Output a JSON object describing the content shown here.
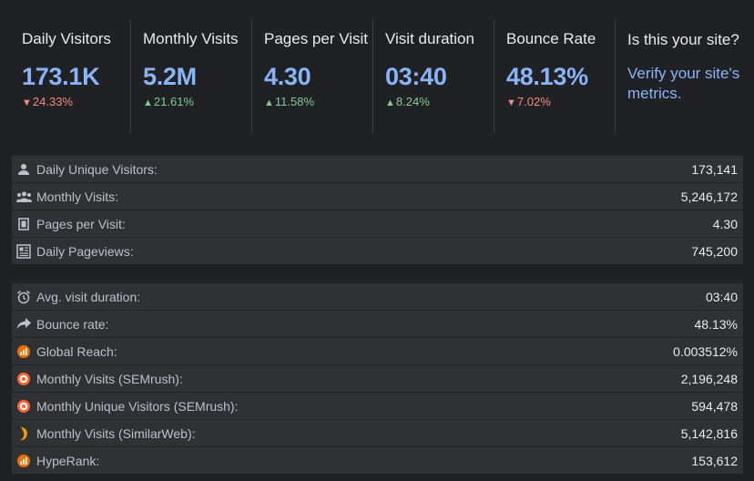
{
  "stats": [
    {
      "label": "Daily Visitors",
      "value": "173.1K",
      "change": "24.33%",
      "direction": "down"
    },
    {
      "label": "Monthly Visits",
      "value": "5.2M",
      "change": "21.61%",
      "direction": "up"
    },
    {
      "label": "Pages per Visit",
      "value": "4.30",
      "change": "11.58%",
      "direction": "up"
    },
    {
      "label": "Visit duration",
      "value": "03:40",
      "change": "8.24%",
      "direction": "up"
    },
    {
      "label": "Bounce Rate",
      "value": "48.13%",
      "change": "7.02%",
      "direction": "down"
    }
  ],
  "verify": {
    "question": "Is this your site?",
    "link": "Verify your site's metrics."
  },
  "arrows": {
    "up": "▲",
    "down": "▼"
  },
  "colors": {
    "accent": "#8ab4f8",
    "up": "#81c995",
    "down": "#f28b82",
    "row_bg": "#303134",
    "page_bg": "#202124"
  },
  "traffic_rows": [
    {
      "icon": "person-icon",
      "label": "Daily Unique Visitors:",
      "value": "173,141"
    },
    {
      "icon": "group-icon",
      "label": "Monthly Visits:",
      "value": "5,246,172"
    },
    {
      "icon": "page-icon",
      "label": "Pages per Visit:",
      "value": "4.30"
    },
    {
      "icon": "newspaper-icon",
      "label": "Daily Pageviews:",
      "value": "745,200"
    }
  ],
  "engagement_rows": [
    {
      "icon": "alarm-clock-icon",
      "label": "Avg. visit duration:",
      "value": "03:40"
    },
    {
      "icon": "share-arrow-icon",
      "label": "Bounce rate:",
      "value": "48.13%"
    },
    {
      "icon": "hypestat-icon",
      "label": "Global Reach:",
      "value": "0.003512%"
    },
    {
      "icon": "semrush-icon",
      "label": "Monthly Visits (SEMrush):",
      "value": "2,196,248"
    },
    {
      "icon": "semrush-icon",
      "label": "Monthly Unique Visitors (SEMrush):",
      "value": "594,478"
    },
    {
      "icon": "similarweb-icon",
      "label": "Monthly Visits (SimilarWeb):",
      "value": "5,142,816"
    },
    {
      "icon": "hypestat-icon",
      "label": "HypeRank:",
      "value": "153,612"
    }
  ]
}
